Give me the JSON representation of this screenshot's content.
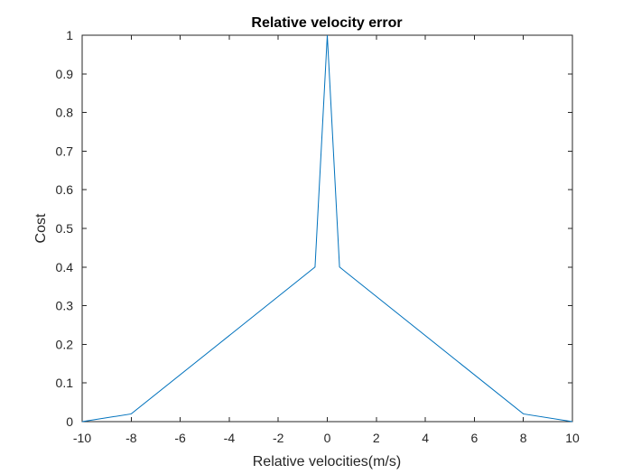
{
  "chart_data": {
    "type": "line",
    "title": "Relative velocity error",
    "xlabel": "Relative velocities(m/s)",
    "ylabel": "Cost",
    "xlim": [
      -10,
      10
    ],
    "ylim": [
      0,
      1
    ],
    "xticks": [
      -10,
      -8,
      -6,
      -4,
      -2,
      0,
      2,
      4,
      6,
      8,
      10
    ],
    "yticks": [
      0,
      0.1,
      0.2,
      0.3,
      0.4,
      0.5,
      0.6,
      0.7,
      0.8,
      0.9,
      1
    ],
    "xtick_labels": [
      "-10",
      "-8",
      "-6",
      "-4",
      "-2",
      "0",
      "2",
      "4",
      "6",
      "8",
      "10"
    ],
    "ytick_labels": [
      "0",
      "0.1",
      "0.2",
      "0.3",
      "0.4",
      "0.5",
      "0.6",
      "0.7",
      "0.8",
      "0.9",
      "1"
    ],
    "grid": false,
    "series": [
      {
        "color": "#0072BD",
        "x": [
          -10,
          -8,
          -0.5,
          0,
          0.5,
          8,
          10
        ],
        "y": [
          0,
          0.02,
          0.4,
          1,
          0.4,
          0.02,
          0
        ]
      }
    ]
  },
  "colors": {
    "axis": "#262626",
    "background": "#ffffff"
  }
}
